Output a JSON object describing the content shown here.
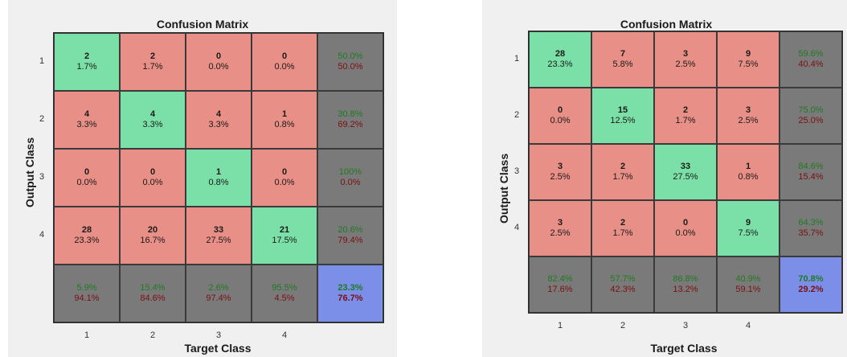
{
  "colors": {
    "diag": "#7be0a8",
    "off": "#e88f87",
    "summary": "#7a7a7a",
    "total": "#7b8fe8",
    "pct_good": "#1f7a1f",
    "pct_bad": "#7a1010",
    "panel_bg": "#f0f0f0"
  },
  "chart_data": [
    {
      "type": "heatmap",
      "title": "Confusion Matrix",
      "xlabel": "Target Class",
      "ylabel": "Output Class",
      "xticks": [
        "1",
        "2",
        "3",
        "4"
      ],
      "yticks": [
        "1",
        "2",
        "3",
        "4"
      ],
      "cells": [
        [
          {
            "count": "2",
            "pct": "1.7%"
          },
          {
            "count": "2",
            "pct": "1.7%"
          },
          {
            "count": "0",
            "pct": "0.0%"
          },
          {
            "count": "0",
            "pct": "0.0%"
          }
        ],
        [
          {
            "count": "4",
            "pct": "3.3%"
          },
          {
            "count": "4",
            "pct": "3.3%"
          },
          {
            "count": "4",
            "pct": "3.3%"
          },
          {
            "count": "1",
            "pct": "0.8%"
          }
        ],
        [
          {
            "count": "0",
            "pct": "0.0%"
          },
          {
            "count": "0",
            "pct": "0.0%"
          },
          {
            "count": "1",
            "pct": "0.8%"
          },
          {
            "count": "0",
            "pct": "0.0%"
          }
        ],
        [
          {
            "count": "28",
            "pct": "23.3%"
          },
          {
            "count": "20",
            "pct": "16.7%"
          },
          {
            "count": "33",
            "pct": "27.5%"
          },
          {
            "count": "21",
            "pct": "17.5%"
          }
        ]
      ],
      "row_summary": [
        {
          "good": "50.0%",
          "bad": "50.0%"
        },
        {
          "good": "30.8%",
          "bad": "69.2%"
        },
        {
          "good": "100%",
          "bad": "0.0%"
        },
        {
          "good": "20.6%",
          "bad": "79.4%"
        }
      ],
      "col_summary": [
        {
          "good": "5.9%",
          "bad": "94.1%"
        },
        {
          "good": "15.4%",
          "bad": "84.6%"
        },
        {
          "good": "2.6%",
          "bad": "97.4%"
        },
        {
          "good": "95.5%",
          "bad": "4.5%"
        }
      ],
      "total": {
        "good": "23.3%",
        "bad": "76.7%"
      }
    },
    {
      "type": "heatmap",
      "title": "Confusion Matrix",
      "xlabel": "Target Class",
      "ylabel": "Output Class",
      "xticks": [
        "1",
        "2",
        "3",
        "4"
      ],
      "yticks": [
        "1",
        "2",
        "3",
        "4"
      ],
      "cells": [
        [
          {
            "count": "28",
            "pct": "23.3%"
          },
          {
            "count": "7",
            "pct": "5.8%"
          },
          {
            "count": "3",
            "pct": "2.5%"
          },
          {
            "count": "9",
            "pct": "7.5%"
          }
        ],
        [
          {
            "count": "0",
            "pct": "0.0%"
          },
          {
            "count": "15",
            "pct": "12.5%"
          },
          {
            "count": "2",
            "pct": "1.7%"
          },
          {
            "count": "3",
            "pct": "2.5%"
          }
        ],
        [
          {
            "count": "3",
            "pct": "2.5%"
          },
          {
            "count": "2",
            "pct": "1.7%"
          },
          {
            "count": "33",
            "pct": "27.5%"
          },
          {
            "count": "1",
            "pct": "0.8%"
          }
        ],
        [
          {
            "count": "3",
            "pct": "2.5%"
          },
          {
            "count": "2",
            "pct": "1.7%"
          },
          {
            "count": "0",
            "pct": "0.0%"
          },
          {
            "count": "9",
            "pct": "7.5%"
          }
        ]
      ],
      "row_summary": [
        {
          "good": "59.6%",
          "bad": "40.4%"
        },
        {
          "good": "75.0%",
          "bad": "25.0%"
        },
        {
          "good": "84.6%",
          "bad": "15.4%"
        },
        {
          "good": "64.3%",
          "bad": "35.7%"
        }
      ],
      "col_summary": [
        {
          "good": "82.4%",
          "bad": "17.6%"
        },
        {
          "good": "57.7%",
          "bad": "42.3%"
        },
        {
          "good": "86.8%",
          "bad": "13.2%"
        },
        {
          "good": "40.9%",
          "bad": "59.1%"
        }
      ],
      "total": {
        "good": "70.8%",
        "bad": "29.2%"
      }
    }
  ]
}
